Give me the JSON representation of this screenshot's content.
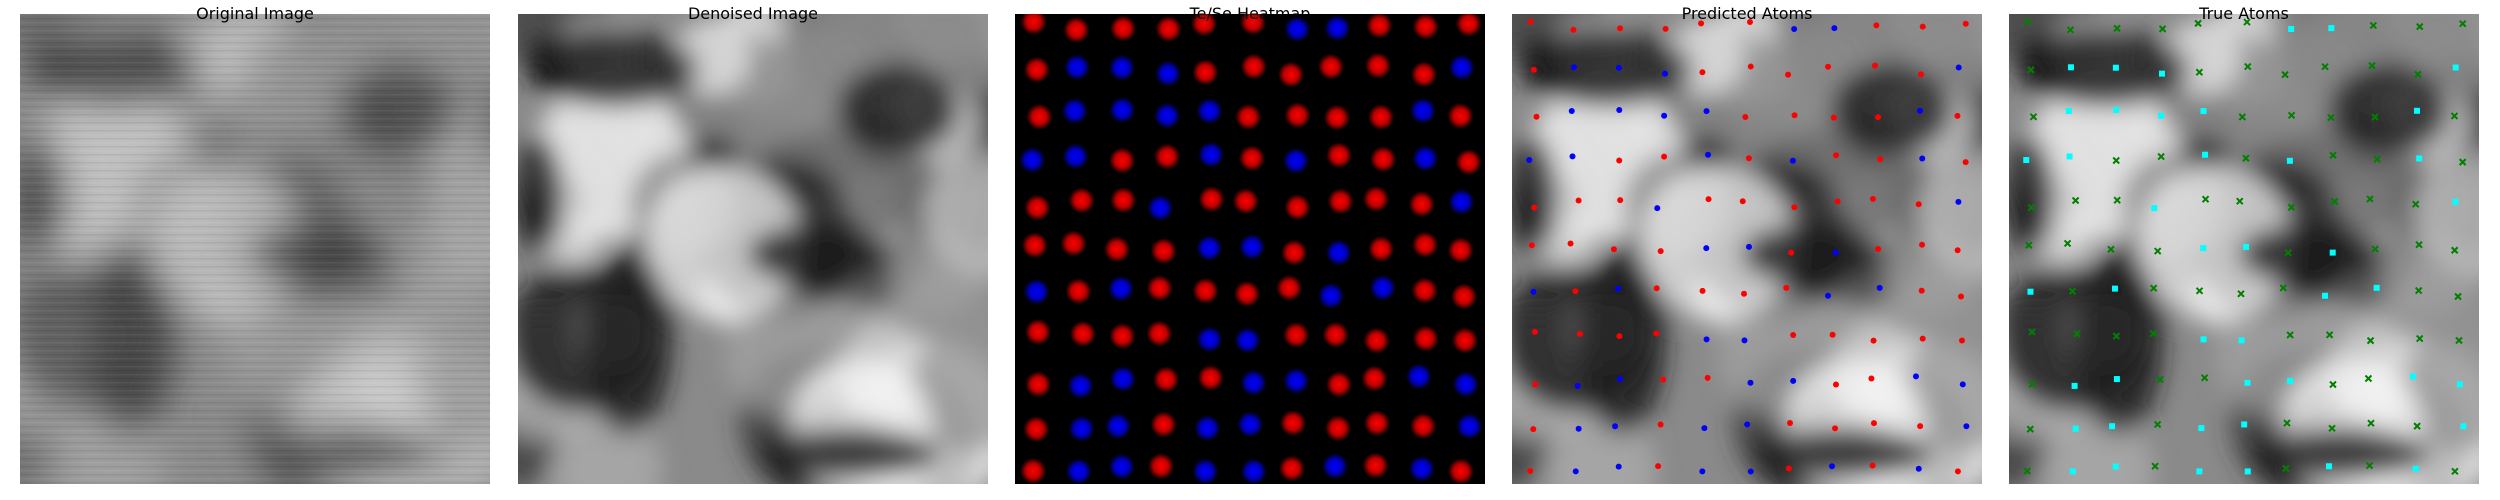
{
  "panels": [
    {
      "title": "Original Image",
      "kind": "grayscale-noisy"
    },
    {
      "title": "Denoised Image",
      "kind": "grayscale"
    },
    {
      "title": "Te/Se Heatmap",
      "kind": "heatmap"
    },
    {
      "title": "Predicted Atoms",
      "kind": "grayscale-markers"
    },
    {
      "title": "True Atoms",
      "kind": "grayscale-markers"
    }
  ],
  "colors": {
    "te": "#ff0000",
    "se": "#0000ff",
    "true_te": "#008000",
    "true_se": "#00ffff",
    "heat_background": "#000000"
  },
  "lattice": {
    "cols": 11,
    "rows": 11
  },
  "heatmap_pattern": [
    "RRRRRRBBRRR",
    "RBBBRRRRRRB",
    "RBBBBRRRRBR",
    "BBRRBRBRRBR",
    "RRRBRRRRRRB",
    "RRRRBBRBRRR",
    "BRBRRRRBBRR",
    "RRRRBBRRRRR",
    "RBBRRBBRRBB",
    "RBBRBBRRRRB",
    "RBBRBBRBRBR"
  ]
}
